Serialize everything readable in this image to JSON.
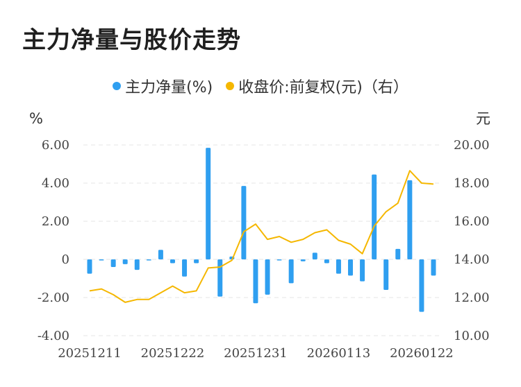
{
  "title": "主力净量与股价走势",
  "legend": {
    "bar_label": "主力净量(%)",
    "line_label": "收盘价:前复权(元)（右）",
    "bar_color": "#2f9ff0",
    "line_color": "#f5b700"
  },
  "chart_data": {
    "type": "bar+line",
    "left_unit": "%",
    "right_unit": "元",
    "left_ticks": [
      "6.00",
      "4.00",
      "2.00",
      "0",
      "-2.00",
      "-4.00"
    ],
    "right_ticks": [
      "20.00",
      "18.00",
      "16.00",
      "14.00",
      "12.00",
      "10.00"
    ],
    "left_range": [
      -4,
      6
    ],
    "right_range": [
      10,
      20
    ],
    "x_tick_labels": [
      "20251211",
      "20251222",
      "20251231",
      "20260113",
      "20260122"
    ],
    "x_tick_indices": [
      0,
      7,
      14,
      21,
      28
    ],
    "series": [
      {
        "name": "主力净量(%)",
        "type": "bar",
        "axis": "left",
        "values": [
          -0.75,
          -0.05,
          -0.4,
          -0.25,
          -0.55,
          -0.05,
          0.5,
          -0.2,
          -0.9,
          -0.2,
          5.85,
          -1.95,
          0.15,
          3.85,
          -2.3,
          -1.85,
          -0.05,
          -1.25,
          -0.1,
          0.35,
          -0.2,
          -0.75,
          -0.85,
          -1.15,
          4.45,
          -1.6,
          0.55,
          4.15,
          -2.75,
          -0.85
        ]
      },
      {
        "name": "收盘价:前复权(元)（右）",
        "type": "line",
        "axis": "right",
        "values": [
          12.35,
          12.45,
          12.15,
          11.75,
          11.9,
          11.9,
          12.25,
          12.6,
          12.25,
          12.35,
          13.55,
          13.6,
          13.95,
          15.45,
          15.85,
          15.05,
          15.2,
          14.9,
          15.05,
          15.4,
          15.55,
          15.0,
          14.8,
          14.3,
          15.75,
          16.5,
          16.95,
          18.65,
          18.0,
          17.95
        ]
      }
    ]
  }
}
